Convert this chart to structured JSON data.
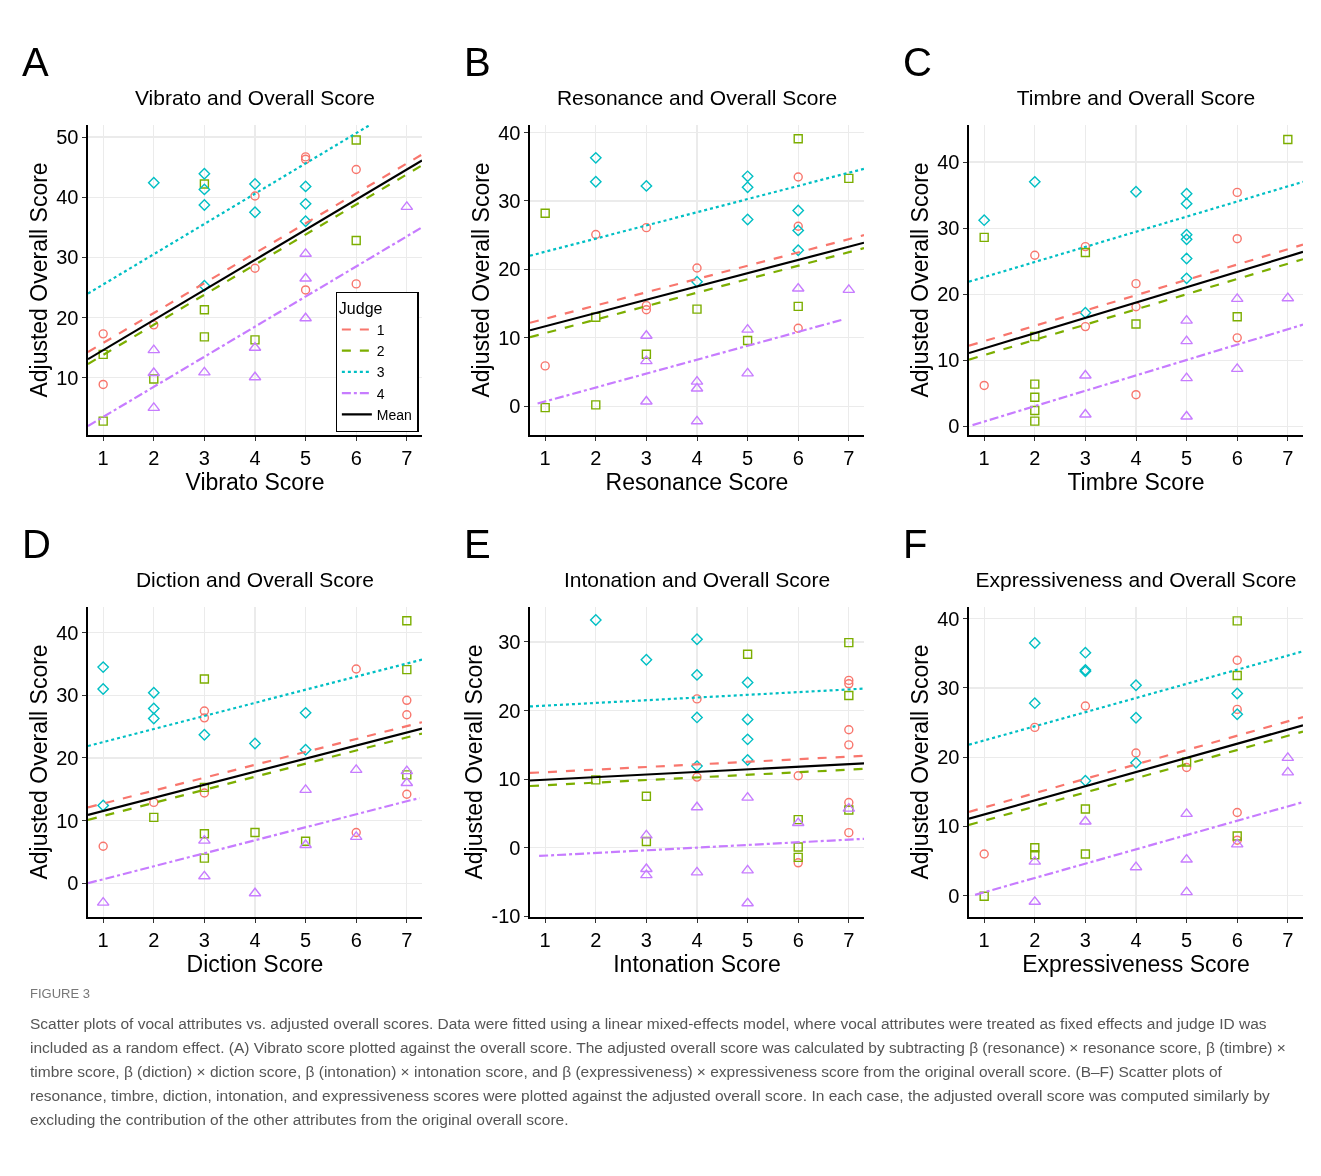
{
  "chart_data": [
    {
      "type": "scatter",
      "title": "Vibrato and Overall Score",
      "xlabel": "Vibrato Score",
      "ylabel": "Adjusted Overall Score",
      "annotations": [
        "A"
      ],
      "xlim": [
        0.7,
        7.3
      ],
      "xticks": [
        1,
        2,
        3,
        4,
        5,
        6,
        7
      ],
      "ylim": [
        0.5,
        52
      ],
      "yticks": [
        10,
        20,
        30,
        40,
        50
      ],
      "grid": true,
      "legend": "bottom right",
      "legend_title": "Judge",
      "series": [
        {
          "name": "1",
          "color": "#f8766d",
          "marker": "circle",
          "x": [
            1,
            1,
            2,
            4,
            4,
            5,
            5,
            5,
            6,
            6
          ],
          "values": [
            17.3,
            8.9,
            18.8,
            40.2,
            28.2,
            46.7,
            46.3,
            24.6,
            44.6,
            25.6
          ]
        },
        {
          "name": "2",
          "color": "#7cae00",
          "marker": "square",
          "x": [
            1,
            1,
            2,
            3,
            3,
            3,
            4,
            6,
            6
          ],
          "values": [
            13.9,
            2.8,
            9.8,
            42.2,
            21.3,
            16.8,
            16.3,
            49.5,
            32.8
          ]
        },
        {
          "name": "3",
          "color": "#00bfc4",
          "marker": "diamond",
          "x": [
            2,
            3,
            3,
            3,
            3,
            4,
            4,
            5,
            5,
            5
          ],
          "values": [
            42.4,
            43.9,
            41.3,
            38.7,
            25.3,
            42.2,
            37.5,
            41.8,
            38.9,
            36.0
          ]
        },
        {
          "name": "4",
          "color": "#c77cff",
          "marker": "triangle",
          "x": [
            2,
            2,
            2,
            3,
            4,
            4,
            5,
            5,
            5,
            7
          ],
          "values": [
            14.6,
            10.8,
            5.0,
            10.9,
            15.0,
            10.1,
            30.6,
            26.5,
            19.9,
            38.4
          ]
        },
        {
          "type": "line",
          "name": "1",
          "color": "#f8766d",
          "line_style": "dashed",
          "x": [
            0.7,
            7.3
          ],
          "values": [
            14.3,
            47.1
          ]
        },
        {
          "type": "line",
          "name": "2",
          "color": "#7cae00",
          "line_style": "dashed",
          "x": [
            0.7,
            7.3
          ],
          "values": [
            12.3,
            45.3
          ]
        },
        {
          "type": "line",
          "name": "3",
          "color": "#00bfc4",
          "line_style": "dotted",
          "x": [
            0.7,
            6.25
          ],
          "values": [
            24.0,
            51.9
          ]
        },
        {
          "type": "line",
          "name": "4",
          "color": "#c77cff",
          "line_style": "dashdot",
          "x": [
            0.7,
            7.3
          ],
          "values": [
            2.0,
            35.0
          ]
        },
        {
          "type": "line",
          "name": "Mean",
          "color": "#000000",
          "line_style": "solid",
          "x": [
            0.7,
            7.3
          ],
          "values": [
            13.1,
            46.1
          ]
        }
      ]
    },
    {
      "type": "scatter",
      "title": "Resonance and Overall Score",
      "xlabel": "Resonance Score",
      "ylabel": "Adjusted Overall Score",
      "annotations": [
        "B"
      ],
      "xlim": [
        0.7,
        7.3
      ],
      "xticks": [
        1,
        2,
        3,
        4,
        5,
        6,
        7
      ],
      "ylim": [
        -4.2,
        41.1
      ],
      "yticks": [
        0,
        10,
        20,
        30,
        40
      ],
      "grid": true,
      "series": [
        {
          "color": "#f8766d",
          "marker": "circle",
          "x": [
            1,
            2,
            3,
            3,
            3,
            4,
            6,
            6,
            6
          ],
          "values": [
            5.9,
            25.1,
            26.1,
            14.7,
            14.1,
            20.2,
            33.5,
            26.3,
            11.4
          ]
        },
        {
          "color": "#7cae00",
          "marker": "square",
          "x": [
            1,
            1,
            2,
            2,
            3,
            4,
            5,
            6,
            6,
            7
          ],
          "values": [
            28.2,
            -0.2,
            0.2,
            13.0,
            7.6,
            14.2,
            9.6,
            39.1,
            14.6,
            33.3
          ]
        },
        {
          "color": "#00bfc4",
          "marker": "diamond",
          "x": [
            2,
            2,
            3,
            4,
            5,
            5,
            5,
            6,
            6,
            6
          ],
          "values": [
            36.3,
            32.8,
            32.2,
            18.2,
            33.6,
            32.0,
            27.3,
            28.6,
            25.7,
            22.8
          ]
        },
        {
          "color": "#c77cff",
          "marker": "triangle",
          "x": [
            3,
            3,
            3,
            4,
            4,
            4,
            5,
            5,
            6,
            7
          ],
          "values": [
            10.3,
            6.6,
            0.7,
            3.6,
            2.6,
            -2.2,
            11.2,
            4.8,
            17.2,
            17.0
          ]
        },
        {
          "type": "line",
          "color": "#f8766d",
          "line_style": "dashed",
          "x": [
            0.7,
            7.3
          ],
          "values": [
            12.2,
            25.0
          ]
        },
        {
          "type": "line",
          "color": "#7cae00",
          "line_style": "dashed",
          "x": [
            0.7,
            7.3
          ],
          "values": [
            10.1,
            23.1
          ]
        },
        {
          "type": "line",
          "color": "#00bfc4",
          "line_style": "dotted",
          "x": [
            0.7,
            7.3
          ],
          "values": [
            22.0,
            34.7
          ]
        },
        {
          "type": "line",
          "color": "#c77cff",
          "line_style": "dashdot",
          "x": [
            0.85,
            6.9
          ],
          "values": [
            0.4,
            12.7
          ]
        },
        {
          "type": "line",
          "color": "#000000",
          "line_style": "solid",
          "x": [
            0.7,
            7.3
          ],
          "values": [
            11.1,
            23.9
          ]
        }
      ]
    },
    {
      "type": "scatter",
      "title": "Timbre and Overall Score",
      "xlabel": "Timbre Score",
      "ylabel": "Adjusted Overall Score",
      "annotations": [
        "C"
      ],
      "xlim": [
        0.7,
        7.3
      ],
      "xticks": [
        1,
        2,
        3,
        4,
        5,
        6,
        7
      ],
      "ylim": [
        -1.3,
        45.6
      ],
      "yticks": [
        0,
        10,
        20,
        30,
        40
      ],
      "grid": true,
      "series": [
        {
          "color": "#f8766d",
          "marker": "circle",
          "x": [
            1,
            2,
            3,
            3,
            4,
            4,
            4,
            6,
            6,
            6
          ],
          "values": [
            6.2,
            25.9,
            27.2,
            15.1,
            21.6,
            18.1,
            4.8,
            35.4,
            28.4,
            13.4
          ]
        },
        {
          "color": "#7cae00",
          "marker": "square",
          "x": [
            1,
            2,
            2,
            2,
            2,
            2,
            3,
            4,
            6,
            7
          ],
          "values": [
            28.6,
            13.6,
            6.4,
            4.4,
            2.4,
            0.8,
            26.3,
            15.5,
            16.6,
            43.4
          ]
        },
        {
          "color": "#00bfc4",
          "marker": "diamond",
          "x": [
            1,
            2,
            3,
            4,
            5,
            5,
            5,
            5,
            5,
            5
          ],
          "values": [
            31.2,
            37.0,
            17.2,
            35.5,
            35.2,
            33.7,
            29.0,
            28.3,
            25.4,
            22.4
          ]
        },
        {
          "color": "#c77cff",
          "marker": "triangle",
          "x": [
            3,
            3,
            5,
            5,
            5,
            5,
            6,
            6,
            7
          ],
          "values": [
            7.7,
            1.8,
            16.0,
            12.9,
            7.3,
            1.5,
            19.3,
            8.7,
            19.4
          ]
        },
        {
          "type": "line",
          "color": "#f8766d",
          "line_style": "dashed",
          "x": [
            0.7,
            7.3
          ],
          "values": [
            12.2,
            27.5
          ]
        },
        {
          "type": "line",
          "color": "#7cae00",
          "line_style": "dashed",
          "x": [
            0.7,
            7.3
          ],
          "values": [
            10.1,
            25.3
          ]
        },
        {
          "type": "line",
          "color": "#00bfc4",
          "line_style": "dotted",
          "x": [
            0.7,
            7.3
          ],
          "values": [
            21.9,
            37.0
          ]
        },
        {
          "type": "line",
          "color": "#c77cff",
          "line_style": "dashdot",
          "x": [
            0.77,
            7.3
          ],
          "values": [
            0.2,
            15.4
          ]
        },
        {
          "type": "line",
          "color": "#000000",
          "line_style": "solid",
          "x": [
            0.7,
            7.3
          ],
          "values": [
            11.1,
            26.4
          ]
        }
      ]
    },
    {
      "type": "scatter",
      "title": "Diction and Overall Score",
      "xlabel": "Diction Score",
      "ylabel": "Adjusted Overall Score",
      "annotations": [
        "D"
      ],
      "xlim": [
        0.7,
        7.3
      ],
      "xticks": [
        1,
        2,
        3,
        4,
        5,
        6,
        7
      ],
      "ylim": [
        -5.4,
        44.1
      ],
      "yticks": [
        0,
        10,
        20,
        30,
        40
      ],
      "grid": true,
      "series": [
        {
          "color": "#f8766d",
          "marker": "circle",
          "x": [
            1,
            2,
            3,
            3,
            3,
            6,
            6,
            7,
            7,
            7
          ],
          "values": [
            5.9,
            12.9,
            27.5,
            26.4,
            14.4,
            34.2,
            8.1,
            29.2,
            26.9,
            14.2
          ]
        },
        {
          "color": "#7cae00",
          "marker": "square",
          "x": [
            2,
            3,
            3,
            3,
            3,
            4,
            5,
            7,
            7,
            7
          ],
          "values": [
            10.5,
            32.6,
            15.3,
            7.9,
            4.0,
            8.1,
            6.7,
            41.9,
            34.1,
            17.3
          ]
        },
        {
          "color": "#00bfc4",
          "marker": "diamond",
          "x": [
            1,
            1,
            1,
            2,
            2,
            2,
            3,
            4,
            5,
            5
          ],
          "values": [
            34.5,
            31.0,
            12.4,
            30.4,
            27.9,
            26.3,
            23.7,
            22.3,
            27.2,
            21.3
          ]
        },
        {
          "color": "#c77cff",
          "marker": "triangle",
          "x": [
            1,
            3,
            3,
            4,
            5,
            5,
            6,
            6,
            7,
            7
          ],
          "values": [
            -3.1,
            6.8,
            1.1,
            -1.6,
            14.9,
            6.1,
            18.1,
            7.4,
            17.9,
            16.0
          ]
        },
        {
          "type": "line",
          "color": "#f8766d",
          "line_style": "dashed",
          "x": [
            0.7,
            7.3
          ],
          "values": [
            12.1,
            25.7
          ]
        },
        {
          "type": "line",
          "color": "#7cae00",
          "line_style": "dashed",
          "x": [
            0.7,
            7.3
          ],
          "values": [
            10.1,
            23.9
          ]
        },
        {
          "type": "line",
          "color": "#00bfc4",
          "line_style": "dotted",
          "x": [
            0.7,
            7.3
          ],
          "values": [
            21.9,
            35.7
          ]
        },
        {
          "type": "line",
          "color": "#c77cff",
          "line_style": "dashdot",
          "x": [
            0.7,
            7.25
          ],
          "values": [
            0.0,
            13.6
          ]
        },
        {
          "type": "line",
          "color": "#000000",
          "line_style": "solid",
          "x": [
            0.7,
            7.3
          ],
          "values": [
            10.9,
            24.7
          ]
        }
      ]
    },
    {
      "type": "scatter",
      "title": "Intonation and Overall Score",
      "xlabel": "Intonation Score",
      "ylabel": "Adjusted Overall Score",
      "annotations": [
        "E"
      ],
      "xlim": [
        0.7,
        7.3
      ],
      "xticks": [
        1,
        2,
        3,
        4,
        5,
        6,
        7
      ],
      "ylim": [
        -10.1,
        35.1
      ],
      "yticks": [
        -10,
        0,
        10,
        20,
        30
      ],
      "grid": true,
      "series": [
        {
          "color": "#f8766d",
          "marker": "circle",
          "x": [
            4,
            4,
            6,
            6,
            7,
            7,
            7,
            7,
            7,
            7
          ],
          "values": [
            21.7,
            10.3,
            10.5,
            -2.2,
            24.4,
            23.9,
            17.2,
            15.0,
            6.6,
            2.2
          ]
        },
        {
          "color": "#7cae00",
          "marker": "square",
          "x": [
            2,
            3,
            3,
            5,
            6,
            6,
            6,
            7,
            7,
            7
          ],
          "values": [
            9.9,
            7.5,
            0.9,
            28.2,
            4.1,
            0.1,
            -1.4,
            29.9,
            22.2,
            5.5
          ]
        },
        {
          "color": "#00bfc4",
          "marker": "diamond",
          "x": [
            2,
            3,
            4,
            4,
            4,
            4,
            5,
            5,
            5,
            5
          ],
          "values": [
            33.2,
            27.4,
            30.4,
            25.2,
            19.0,
            11.9,
            24.1,
            18.7,
            15.8,
            12.8
          ]
        },
        {
          "color": "#c77cff",
          "marker": "triangle",
          "x": [
            3,
            3,
            3,
            4,
            4,
            5,
            5,
            5,
            6,
            7
          ],
          "values": [
            1.8,
            -3.1,
            -4.0,
            5.9,
            -3.6,
            7.3,
            -3.3,
            -8.1,
            3.6,
            5.7
          ]
        },
        {
          "type": "line",
          "color": "#f8766d",
          "line_style": "dashed",
          "x": [
            0.7,
            7.3
          ],
          "values": [
            10.9,
            13.4
          ]
        },
        {
          "type": "line",
          "color": "#7cae00",
          "line_style": "dashed",
          "x": [
            0.7,
            7.3
          ],
          "values": [
            9.0,
            11.5
          ]
        },
        {
          "type": "line",
          "color": "#00bfc4",
          "line_style": "dotted",
          "x": [
            0.7,
            7.3
          ],
          "values": [
            20.6,
            23.2
          ]
        },
        {
          "type": "line",
          "color": "#c77cff",
          "line_style": "dashdot",
          "x": [
            0.88,
            7.3
          ],
          "values": [
            -1.2,
            1.3
          ]
        },
        {
          "type": "line",
          "color": "#000000",
          "line_style": "solid",
          "x": [
            0.7,
            7.3
          ],
          "values": [
            9.8,
            12.3
          ]
        }
      ]
    },
    {
      "type": "scatter",
      "title": "Expressiveness and Overall Score",
      "xlabel": "Expressiveness Score",
      "ylabel": "Adjusted Overall Score",
      "annotations": [
        "F",
        "FIGURE 3",
        "Scatter plots of vocal attributes vs. adjusted overall scores. Data were fitted using a linear mixed-effects model, where vocal attributes were treated as fixed effects and judge ID was included as a random effect. (A) Vibrato score plotted against the overall score. The adjusted overall score was calculated by subtracting β (resonance) × resonance score, β (timbre) × timbre score, β (diction) × diction score, β (intonation) × intonation score, and β (expressiveness) × expressiveness score from the original overall score. (B–F) Scatter plots of resonance, timbre, diction, intonation, and expressiveness scores were plotted against the adjusted overall score. In each case, the adjusted overall score was computed similarly by excluding the contribution of the other attributes from the original overall score."
      ],
      "xlim": [
        0.7,
        7.3
      ],
      "xticks": [
        1,
        2,
        3,
        4,
        5,
        6,
        7
      ],
      "ylim": [
        -3.1,
        41.7
      ],
      "yticks": [
        0,
        10,
        20,
        30,
        40
      ],
      "grid": true,
      "series": [
        {
          "color": "#f8766d",
          "marker": "circle",
          "x": [
            1,
            2,
            3,
            4,
            5,
            6,
            6,
            6,
            6
          ],
          "values": [
            6.0,
            24.3,
            27.4,
            20.6,
            18.5,
            34.0,
            26.9,
            12.0,
            8.0
          ]
        },
        {
          "color": "#7cae00",
          "marker": "square",
          "x": [
            1,
            2,
            2,
            3,
            3,
            5,
            6,
            6,
            6
          ],
          "values": [
            -0.1,
            6.9,
            5.9,
            12.5,
            6.0,
            19.3,
            39.7,
            31.8,
            8.6
          ]
        },
        {
          "color": "#00bfc4",
          "marker": "diamond",
          "x": [
            2,
            2,
            3,
            3,
            3,
            3,
            4,
            4,
            4,
            6,
            6
          ],
          "values": [
            36.5,
            27.8,
            35.1,
            32.6,
            32.4,
            16.6,
            30.4,
            25.7,
            19.2,
            29.2,
            26.2
          ]
        },
        {
          "color": "#c77cff",
          "marker": "triangle",
          "x": [
            2,
            2,
            3,
            4,
            5,
            5,
            5,
            6,
            7,
            7
          ],
          "values": [
            4.9,
            -0.9,
            10.7,
            4.1,
            11.8,
            5.2,
            0.5,
            7.4,
            19.9,
            17.8
          ]
        },
        {
          "type": "line",
          "color": "#f8766d",
          "line_style": "dashed",
          "x": [
            0.7,
            7.3
          ],
          "values": [
            12.1,
            25.8
          ]
        },
        {
          "type": "line",
          "color": "#7cae00",
          "line_style": "dashed",
          "x": [
            0.7,
            7.3
          ],
          "values": [
            10.2,
            23.7
          ]
        },
        {
          "type": "line",
          "color": "#00bfc4",
          "line_style": "dotted",
          "x": [
            0.7,
            7.3
          ],
          "values": [
            21.8,
            35.3
          ]
        },
        {
          "type": "line",
          "color": "#c77cff",
          "line_style": "dashdot",
          "x": [
            0.82,
            7.3
          ],
          "values": [
            0.1,
            13.5
          ]
        },
        {
          "type": "line",
          "color": "#000000",
          "line_style": "solid",
          "x": [
            0.7,
            7.3
          ],
          "values": [
            11.1,
            24.6
          ]
        }
      ]
    }
  ]
}
